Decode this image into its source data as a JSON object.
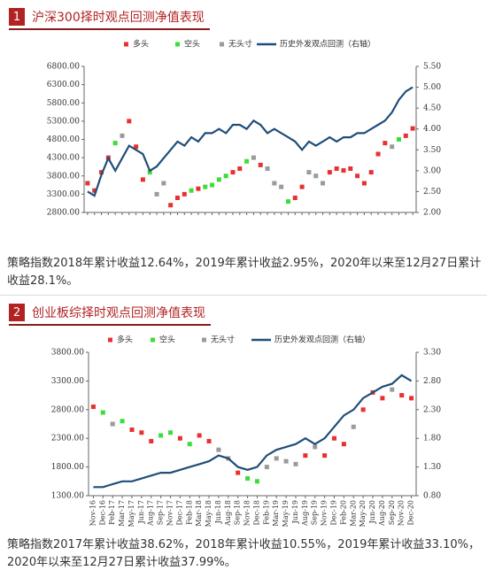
{
  "sections": [
    {
      "number": "1",
      "title": "沪深300择时观点回测净值表现",
      "note": "策略指数2018年累计收益12.64%，2019年累计收益2.95%，2020年以来至12月27日累计收益28.1%。"
    },
    {
      "number": "2",
      "title": "创业板综择时观点回测净值表现",
      "note": "策略指数2017年累计收益38.62%，2018年累计收益10.55%，2019年累计收益33.10%，2020年以来至12月27日累计收益37.99%。"
    }
  ],
  "chart_data": [
    {
      "type": "combo",
      "categories": [
        null,
        null,
        null,
        null,
        null,
        null,
        null,
        null,
        null,
        null,
        null,
        null,
        null,
        null,
        null,
        null,
        null,
        null,
        null,
        null,
        null,
        null,
        null,
        null,
        null,
        null,
        null,
        null,
        null,
        null,
        null,
        null,
        null,
        null,
        null,
        null,
        null,
        null,
        null,
        null,
        null,
        null,
        null,
        null,
        null,
        null,
        null,
        null
      ],
      "series": [
        {
          "name": "多头",
          "type": "scatter",
          "color": "#e8312f",
          "values": [
            3600,
            3400,
            3900,
            4300,
            null,
            null,
            5300,
            4600,
            3700,
            null,
            null,
            null,
            3000,
            3200,
            3300,
            null,
            3450,
            null,
            null,
            null,
            null,
            3900,
            4000,
            null,
            null,
            4100,
            null,
            null,
            null,
            null,
            3200,
            3500,
            null,
            null,
            null,
            3900,
            4000,
            3950,
            4000,
            3800,
            3600,
            3900,
            4400,
            4700,
            null,
            null,
            4900,
            5100
          ]
        },
        {
          "name": "空头",
          "type": "scatter",
          "color": "#3ddc3a",
          "values": [
            null,
            null,
            null,
            null,
            4700,
            null,
            null,
            null,
            null,
            3900,
            null,
            null,
            null,
            null,
            null,
            3400,
            null,
            3500,
            3550,
            3700,
            3800,
            null,
            null,
            4200,
            null,
            null,
            null,
            null,
            null,
            3100,
            null,
            null,
            null,
            null,
            null,
            null,
            null,
            null,
            null,
            null,
            null,
            null,
            null,
            null,
            null,
            4800,
            null,
            null
          ]
        },
        {
          "name": "无头寸",
          "type": "scatter",
          "color": "#9a9a9a",
          "values": [
            null,
            null,
            null,
            null,
            null,
            4900,
            null,
            null,
            null,
            null,
            3300,
            3600,
            null,
            null,
            null,
            null,
            null,
            null,
            null,
            null,
            null,
            null,
            null,
            null,
            4300,
            null,
            4000,
            3600,
            3500,
            null,
            null,
            null,
            3900,
            3800,
            3600,
            null,
            null,
            null,
            null,
            null,
            null,
            null,
            null,
            null,
            4600,
            null,
            null,
            null
          ]
        },
        {
          "name": "历史外发观点回测（右轴）",
          "type": "line",
          "axis": "y2",
          "color": "#1f4e79",
          "values": [
            2.5,
            2.4,
            2.9,
            3.3,
            3.0,
            3.3,
            3.6,
            3.5,
            3.4,
            3.0,
            3.1,
            3.3,
            3.5,
            3.7,
            3.6,
            3.8,
            3.7,
            3.9,
            3.9,
            4.0,
            3.9,
            4.1,
            4.1,
            4.0,
            4.2,
            4.1,
            3.9,
            4.0,
            3.9,
            3.8,
            3.7,
            3.5,
            3.7,
            3.6,
            3.7,
            3.8,
            3.7,
            3.8,
            3.8,
            3.9,
            3.9,
            4.0,
            4.1,
            4.2,
            4.4,
            4.7,
            4.9,
            5.0
          ]
        }
      ],
      "ylim": [
        2800,
        6800
      ],
      "yticks": [
        {
          "value": 2800,
          "label": "2800.00"
        },
        {
          "value": 3300,
          "label": "3300.00"
        },
        {
          "value": 3800,
          "label": "3800.00"
        },
        {
          "value": 4300,
          "label": "4300.00"
        },
        {
          "value": 4800,
          "label": "4800.00"
        },
        {
          "value": 5300,
          "label": "5300.00"
        },
        {
          "value": 5800,
          "label": "5800.00"
        },
        {
          "value": 6300,
          "label": "6300.00"
        },
        {
          "value": 6800,
          "label": "6800.00"
        }
      ],
      "y2lim": [
        2,
        5.5
      ],
      "y2ticks": [
        {
          "value": 2,
          "label": "2.00"
        },
        {
          "value": 2.5,
          "label": "2.50"
        },
        {
          "value": 3,
          "label": "3.00"
        },
        {
          "value": 3.5,
          "label": "3.50"
        },
        {
          "value": 4,
          "label": "4.00"
        },
        {
          "value": 4.5,
          "label": "4.50"
        },
        {
          "value": 5,
          "label": "5.00"
        },
        {
          "value": 5.5,
          "label": "5.50"
        }
      ]
    },
    {
      "type": "combo",
      "categories": [
        "Nov-16",
        "Dec-16",
        "Feb-17",
        "Mar-17",
        "May-17",
        "Jun-17",
        "Aug-17",
        "Sep-17",
        "Nov-17",
        "Dec-17",
        "Feb-18",
        "Mar-18",
        "May-18",
        "Jun-18",
        "Aug-18",
        "Sep-18",
        "Nov-18",
        "Dec-18",
        "Feb-19",
        "Mar-19",
        "May-19",
        "Jun-19",
        "Aug-19",
        "Sep-19",
        "Nov-19",
        "Dec-19",
        "Feb-20",
        "Mar-20",
        "May-20",
        "Jun-20",
        "Aug-20",
        "Sep-20",
        "Nov-20",
        "Dec-20"
      ],
      "series": [
        {
          "name": "多头",
          "type": "scatter",
          "color": "#e8312f",
          "values": [
            2850,
            null,
            null,
            null,
            2450,
            2400,
            2250,
            null,
            null,
            2300,
            null,
            2350,
            2250,
            null,
            null,
            1700,
            null,
            null,
            null,
            null,
            null,
            null,
            2000,
            null,
            2000,
            2300,
            2200,
            null,
            2800,
            3100,
            3000,
            null,
            3050,
            3000
          ]
        },
        {
          "name": "空头",
          "type": "scatter",
          "color": "#3ddc3a",
          "values": [
            null,
            2750,
            null,
            2600,
            null,
            null,
            null,
            2350,
            2400,
            null,
            2200,
            null,
            null,
            null,
            null,
            null,
            1600,
            1550,
            null,
            null,
            null,
            null,
            null,
            null,
            null,
            null,
            null,
            null,
            null,
            null,
            null,
            null,
            null,
            null
          ]
        },
        {
          "name": "无头寸",
          "type": "scatter",
          "color": "#9a9a9a",
          "values": [
            null,
            null,
            2550,
            null,
            null,
            null,
            null,
            null,
            null,
            null,
            null,
            null,
            null,
            2100,
            1950,
            null,
            null,
            null,
            1800,
            1950,
            1900,
            1850,
            null,
            2150,
            null,
            null,
            null,
            2500,
            null,
            null,
            null,
            3150,
            null,
            null
          ]
        },
        {
          "name": "历史外发观点回测（右轴）",
          "type": "line",
          "axis": "y2",
          "color": "#1f4e79",
          "values": [
            0.95,
            0.95,
            1.0,
            1.05,
            1.05,
            1.1,
            1.15,
            1.2,
            1.2,
            1.25,
            1.3,
            1.35,
            1.4,
            1.5,
            1.45,
            1.3,
            1.25,
            1.3,
            1.5,
            1.6,
            1.65,
            1.7,
            1.8,
            1.7,
            1.8,
            2.0,
            2.2,
            2.3,
            2.5,
            2.6,
            2.7,
            2.75,
            2.9,
            2.8
          ]
        }
      ],
      "ylim": [
        1300,
        3800
      ],
      "yticks": [
        {
          "value": 1300,
          "label": "1300.00"
        },
        {
          "value": 1800,
          "label": "1800.00"
        },
        {
          "value": 2300,
          "label": "2300.00"
        },
        {
          "value": 2800,
          "label": "2800.00"
        },
        {
          "value": 3300,
          "label": "3300.00"
        },
        {
          "value": 3800,
          "label": "3800.00"
        }
      ],
      "y2lim": [
        0.8,
        3.3
      ],
      "y2ticks": [
        {
          "value": 0.8,
          "label": "0.80"
        },
        {
          "value": 1.3,
          "label": "1.30"
        },
        {
          "value": 1.8,
          "label": "1.80"
        },
        {
          "value": 2.3,
          "label": "2.30"
        },
        {
          "value": 2.8,
          "label": "2.80"
        },
        {
          "value": 3.3,
          "label": "3.30"
        }
      ]
    }
  ]
}
